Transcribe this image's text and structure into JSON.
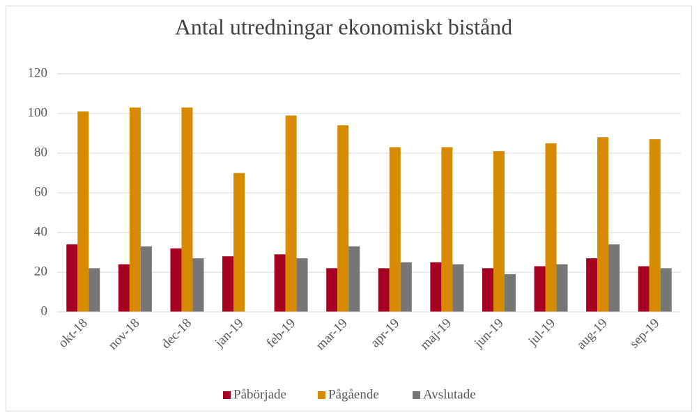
{
  "chart_data": {
    "type": "bar",
    "title": "Antal utredningar ekonomiskt bistånd",
    "categories": [
      "okt-18",
      "nov-18",
      "dec-18",
      "jan-19",
      "feb-19",
      "mar-19",
      "apr-19",
      "maj-19",
      "jun-19",
      "jul-19",
      "aug-19",
      "sep-19"
    ],
    "series": [
      {
        "name": "Påbörjade",
        "color": "#a50021",
        "values": [
          34,
          24,
          32,
          28,
          29,
          22,
          22,
          25,
          22,
          23,
          27,
          23
        ]
      },
      {
        "name": "Pågående",
        "color": "#d68a00",
        "values": [
          101,
          103,
          103,
          70,
          99,
          94,
          83,
          83,
          81,
          85,
          88,
          87
        ]
      },
      {
        "name": "Avslutade",
        "color": "#767676",
        "values": [
          22,
          33,
          27,
          null,
          27,
          33,
          25,
          24,
          19,
          24,
          34,
          22
        ]
      }
    ],
    "ylim": [
      0,
      120
    ],
    "yticks": [
      0,
      20,
      40,
      60,
      80,
      100,
      120
    ],
    "grid": true,
    "legend": "bottom"
  }
}
